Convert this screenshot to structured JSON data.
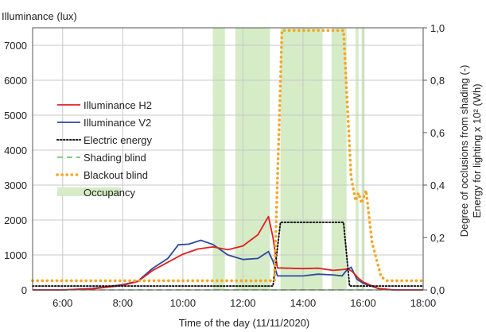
{
  "chart_data": {
    "type": "line",
    "ylabel_left": "Illuminance (lux)",
    "xlabel": "Time of the day (11/11/2020)",
    "ylabel_right_1": "Degree of occlusions from shading (-)",
    "ylabel_right_2": "Energy for lighting x 10² (Wh)",
    "xlim": [
      5,
      18
    ],
    "ylim_left": [
      0,
      7500
    ],
    "ylim_right": [
      0,
      1.0
    ],
    "x_ticks": [
      {
        "v": 6,
        "label": "6:00"
      },
      {
        "v": 8,
        "label": "8:00"
      },
      {
        "v": 10,
        "label": "10:00"
      },
      {
        "v": 12,
        "label": "12:00"
      },
      {
        "v": 14,
        "label": "14:00"
      },
      {
        "v": 16,
        "label": "16:00"
      },
      {
        "v": 18,
        "label": "18:00"
      }
    ],
    "y_left_ticks": [
      {
        "v": 0,
        "label": "0"
      },
      {
        "v": 1000,
        "label": "1000"
      },
      {
        "v": 2000,
        "label": "2000"
      },
      {
        "v": 3000,
        "label": "3000"
      },
      {
        "v": 4000,
        "label": "4000"
      },
      {
        "v": 5000,
        "label": "5000"
      },
      {
        "v": 6000,
        "label": "6000"
      },
      {
        "v": 7000,
        "label": "7000"
      }
    ],
    "y_right_ticks": [
      {
        "v": 0,
        "label": "0,0"
      },
      {
        "v": 0.2,
        "label": "0,2"
      },
      {
        "v": 0.4,
        "label": "0,4"
      },
      {
        "v": 0.6,
        "label": "0,6"
      },
      {
        "v": 0.8,
        "label": "0,8"
      },
      {
        "v": 1.0,
        "label": "1,0"
      }
    ],
    "grid": true,
    "legend_position": "left-middle",
    "occupancy_intervals": [
      [
        11.0,
        11.4
      ],
      [
        11.75,
        12.9
      ],
      [
        13.25,
        14.65
      ],
      [
        14.95,
        15.45
      ],
      [
        15.75,
        15.85
      ],
      [
        15.95,
        16.05
      ]
    ],
    "series": [
      {
        "name": "Illuminance H2",
        "axis": "left",
        "style": "solid",
        "color": "#e02020",
        "points": [
          [
            5.0,
            0
          ],
          [
            6.0,
            0
          ],
          [
            7.0,
            30
          ],
          [
            8.0,
            130
          ],
          [
            8.5,
            240
          ],
          [
            9.0,
            560
          ],
          [
            9.5,
            790
          ],
          [
            10.0,
            1020
          ],
          [
            10.5,
            1170
          ],
          [
            11.0,
            1230
          ],
          [
            11.5,
            1150
          ],
          [
            12.0,
            1260
          ],
          [
            12.5,
            1580
          ],
          [
            12.85,
            2100
          ],
          [
            13.0,
            1500
          ],
          [
            13.15,
            630
          ],
          [
            13.5,
            620
          ],
          [
            14.0,
            610
          ],
          [
            14.5,
            620
          ],
          [
            15.0,
            560
          ],
          [
            15.3,
            580
          ],
          [
            15.5,
            600
          ],
          [
            15.65,
            520
          ],
          [
            15.85,
            330
          ],
          [
            16.0,
            230
          ],
          [
            16.5,
            40
          ],
          [
            17.0,
            0
          ],
          [
            18.0,
            0
          ]
        ]
      },
      {
        "name": "Illuminance V2",
        "axis": "left",
        "style": "solid",
        "color": "#2b4a9c",
        "points": [
          [
            5.0,
            0
          ],
          [
            6.0,
            0
          ],
          [
            7.0,
            40
          ],
          [
            8.0,
            150
          ],
          [
            8.5,
            250
          ],
          [
            9.0,
            620
          ],
          [
            9.5,
            900
          ],
          [
            9.85,
            1290
          ],
          [
            10.2,
            1310
          ],
          [
            10.6,
            1420
          ],
          [
            11.0,
            1300
          ],
          [
            11.5,
            1000
          ],
          [
            12.0,
            870
          ],
          [
            12.5,
            900
          ],
          [
            12.85,
            1100
          ],
          [
            13.0,
            820
          ],
          [
            13.15,
            400
          ],
          [
            14.0,
            400
          ],
          [
            14.5,
            450
          ],
          [
            15.0,
            430
          ],
          [
            15.3,
            400
          ],
          [
            15.45,
            560
          ],
          [
            15.6,
            650
          ],
          [
            15.8,
            300
          ],
          [
            16.0,
            190
          ],
          [
            16.5,
            40
          ],
          [
            17.0,
            0
          ],
          [
            18.0,
            0
          ]
        ]
      },
      {
        "name": "Electric energy",
        "axis": "right",
        "style": "dotted",
        "color": "#111111",
        "points": [
          [
            5.0,
            0.015
          ],
          [
            13.0,
            0.015
          ],
          [
            13.25,
            0.258
          ],
          [
            15.35,
            0.258
          ],
          [
            15.55,
            0.015
          ],
          [
            18.0,
            0.015
          ]
        ]
      },
      {
        "name": "Shading blind",
        "axis": "right",
        "style": "dashed",
        "color": "#5cc05c",
        "points": [
          [
            5.0,
            0.0
          ],
          [
            18.0,
            0.0
          ]
        ]
      },
      {
        "name": "Blackout blind",
        "axis": "right",
        "style": "dotted-heavy",
        "color": "#f5a623",
        "points": [
          [
            5.0,
            0.035
          ],
          [
            13.05,
            0.035
          ],
          [
            13.3,
            0.99
          ],
          [
            15.35,
            0.99
          ],
          [
            15.6,
            0.43
          ],
          [
            15.75,
            0.34
          ],
          [
            15.85,
            0.37
          ],
          [
            15.95,
            0.33
          ],
          [
            16.1,
            0.38
          ],
          [
            16.3,
            0.18
          ],
          [
            16.6,
            0.05
          ],
          [
            16.8,
            0.035
          ],
          [
            18.0,
            0.035
          ]
        ]
      }
    ],
    "legend": [
      {
        "name": "Illuminance H2",
        "style": "solid",
        "color": "#e02020"
      },
      {
        "name": "Illuminance V2",
        "style": "solid",
        "color": "#2b4a9c"
      },
      {
        "name": "Electric energy",
        "style": "dotted",
        "color": "#111111"
      },
      {
        "name": "Shading blind",
        "style": "dashed",
        "color": "#5cc05c"
      },
      {
        "name": "Blackout blind",
        "style": "dotted-heavy",
        "color": "#f5a623"
      },
      {
        "name": "Occupancy",
        "style": "patch",
        "color": "#d5ecc6"
      }
    ]
  }
}
